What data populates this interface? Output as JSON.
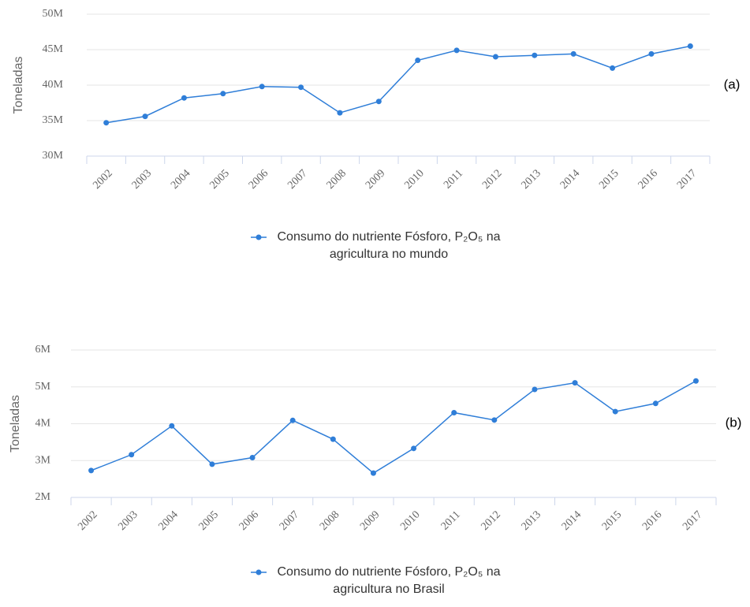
{
  "chart_data": [
    {
      "type": "line",
      "label": "(a)",
      "y_label": "Toneladas",
      "categories": [
        "2002",
        "2003",
        "2004",
        "2005",
        "2006",
        "2007",
        "2008",
        "2009",
        "2010",
        "2011",
        "2012",
        "2013",
        "2014",
        "2015",
        "2016",
        "2017"
      ],
      "series": [
        {
          "name": "Consumo do nutriente Fósforo, P₂O₅ na agricultura no mundo",
          "color": "#2f7ed8",
          "values": [
            34700000,
            35600000,
            38200000,
            38800000,
            39800000,
            39700000,
            36100000,
            37700000,
            43500000,
            44900000,
            44000000,
            44200000,
            44400000,
            42400000,
            44400000,
            45500000
          ]
        }
      ],
      "ylim": [
        30000000,
        50000000
      ],
      "yticks": [
        {
          "value": 30000000,
          "label": "30M"
        },
        {
          "value": 35000000,
          "label": "35M"
        },
        {
          "value": 40000000,
          "label": "40M"
        },
        {
          "value": 45000000,
          "label": "45M"
        },
        {
          "value": 50000000,
          "label": "50M"
        }
      ],
      "grid": true
    },
    {
      "type": "line",
      "label": "(b)",
      "y_label": "Toneladas",
      "categories": [
        "2002",
        "2003",
        "2004",
        "2005",
        "2006",
        "2007",
        "2008",
        "2009",
        "2010",
        "2011",
        "2012",
        "2013",
        "2014",
        "2015",
        "2016",
        "2017"
      ],
      "series": [
        {
          "name": "Consumo do nutriente Fósforo, P₂O₅ na agricultura no Brasil",
          "color": "#2f7ed8",
          "values": [
            2730000,
            3160000,
            3940000,
            2900000,
            3080000,
            4090000,
            3580000,
            2660000,
            3330000,
            4300000,
            4100000,
            4930000,
            5110000,
            4330000,
            4550000,
            5160000
          ]
        }
      ],
      "ylim": [
        2000000,
        6000000
      ],
      "yticks": [
        {
          "value": 2000000,
          "label": "2M"
        },
        {
          "value": 3000000,
          "label": "3M"
        },
        {
          "value": 4000000,
          "label": "4M"
        },
        {
          "value": 5000000,
          "label": "5M"
        },
        {
          "value": 6000000,
          "label": "6M"
        }
      ],
      "grid": true
    }
  ]
}
